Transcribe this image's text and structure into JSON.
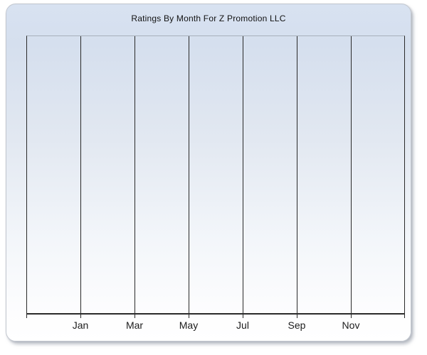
{
  "panel": {
    "title": "Ratings By Month For Z Promotion LLC"
  },
  "chart_data": {
    "type": "line",
    "title": "Ratings By Month For Z Promotion LLC",
    "categories": [
      "Jan",
      "Mar",
      "May",
      "Jul",
      "Sep",
      "Nov"
    ],
    "series": [],
    "values": [],
    "xlabel": "",
    "ylabel": "",
    "y_tick_labels": [],
    "grid": "vertical-only",
    "legend": "none",
    "plot_empty": true,
    "notes": "Plot area is rendered empty: no data series, no y-axis tick labels, no legend. Vertical gridlines at every labeled tick plus unlabeled left/right edge lines."
  },
  "colors": {
    "page_background": "#ffffff",
    "panel_gradient_top": "#d8e2f1",
    "panel_gradient_bottom": "#ffffff",
    "panel_border": "#c2c7cf",
    "plot_top_border": "#a8b0ba",
    "gridline": "#2a2a2a",
    "axis_line": "#2a2a2a",
    "label_text": "#1c1c1c",
    "title_text": "#111111"
  }
}
